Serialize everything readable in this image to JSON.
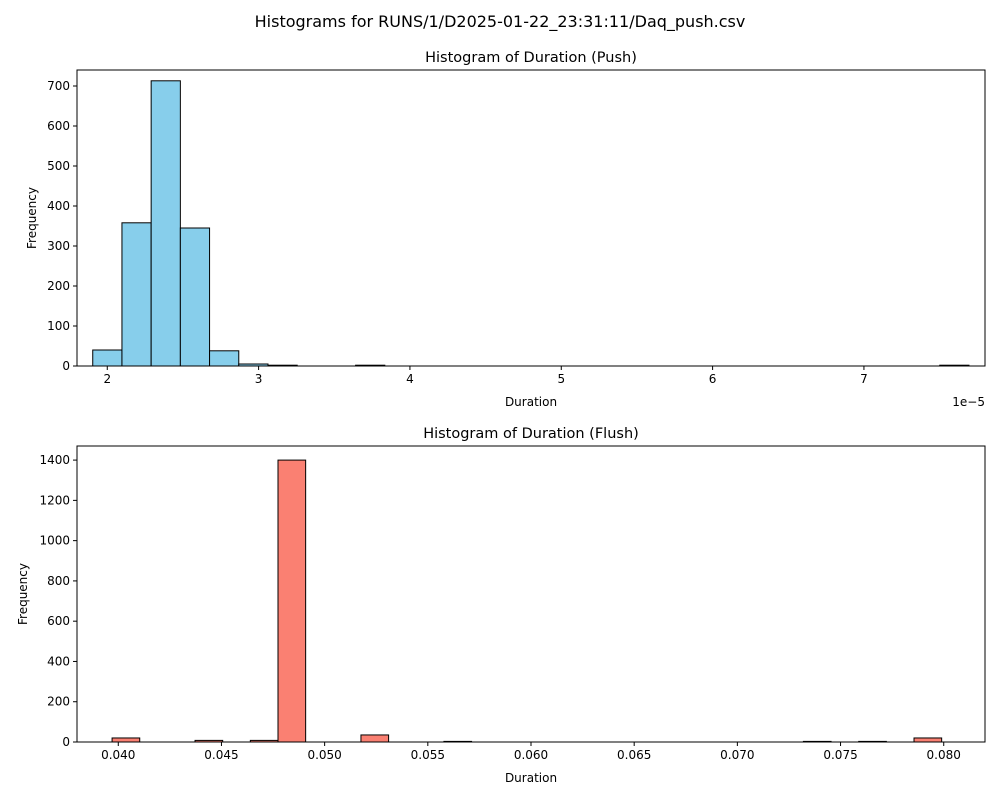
{
  "figure": {
    "suptitle": "Histograms for RUNS/1/D2025-01-22_23:31:11/Daq_push.csv"
  },
  "chart_data": [
    {
      "type": "bar",
      "title": "Histogram of Duration (Push)",
      "xlabel": "Duration",
      "ylabel": "Frequency",
      "x_offset_label": "1e−5",
      "color": "#87CEEB",
      "edgecolor": "#000000",
      "xlim": [
        1.8,
        7.8
      ],
      "ylim": [
        0,
        740
      ],
      "xticks": [
        2,
        3,
        4,
        5,
        6,
        7
      ],
      "yticks": [
        0,
        100,
        200,
        300,
        400,
        500,
        600,
        700
      ],
      "bin_start": 1.904,
      "bin_width": 0.193,
      "values": [
        40,
        358,
        713,
        345,
        38,
        5,
        2,
        0,
        0,
        2,
        0,
        0,
        0,
        0,
        0,
        0,
        0,
        0,
        0,
        0,
        0,
        0,
        0,
        0,
        0,
        0,
        0,
        0,
        0,
        2
      ]
    },
    {
      "type": "bar",
      "title": "Histogram of Duration (Flush)",
      "xlabel": "Duration",
      "ylabel": "Frequency",
      "color": "#FA8072",
      "edgecolor": "#000000",
      "xlim": [
        0.038,
        0.082
      ],
      "ylim": [
        0,
        1470
      ],
      "xticks": [
        "0.040",
        "0.045",
        "0.050",
        "0.055",
        "0.060",
        "0.065",
        "0.070",
        "0.075",
        "0.080"
      ],
      "yticks": [
        0,
        200,
        400,
        600,
        800,
        1000,
        1200,
        1400
      ],
      "bin_start": 0.0397,
      "bin_width": 0.00134,
      "values": [
        20,
        0,
        0,
        8,
        0,
        8,
        1400,
        0,
        0,
        35,
        0,
        0,
        3,
        0,
        0,
        0,
        0,
        0,
        0,
        0,
        0,
        0,
        0,
        0,
        0,
        3,
        0,
        3,
        0,
        20
      ]
    }
  ]
}
